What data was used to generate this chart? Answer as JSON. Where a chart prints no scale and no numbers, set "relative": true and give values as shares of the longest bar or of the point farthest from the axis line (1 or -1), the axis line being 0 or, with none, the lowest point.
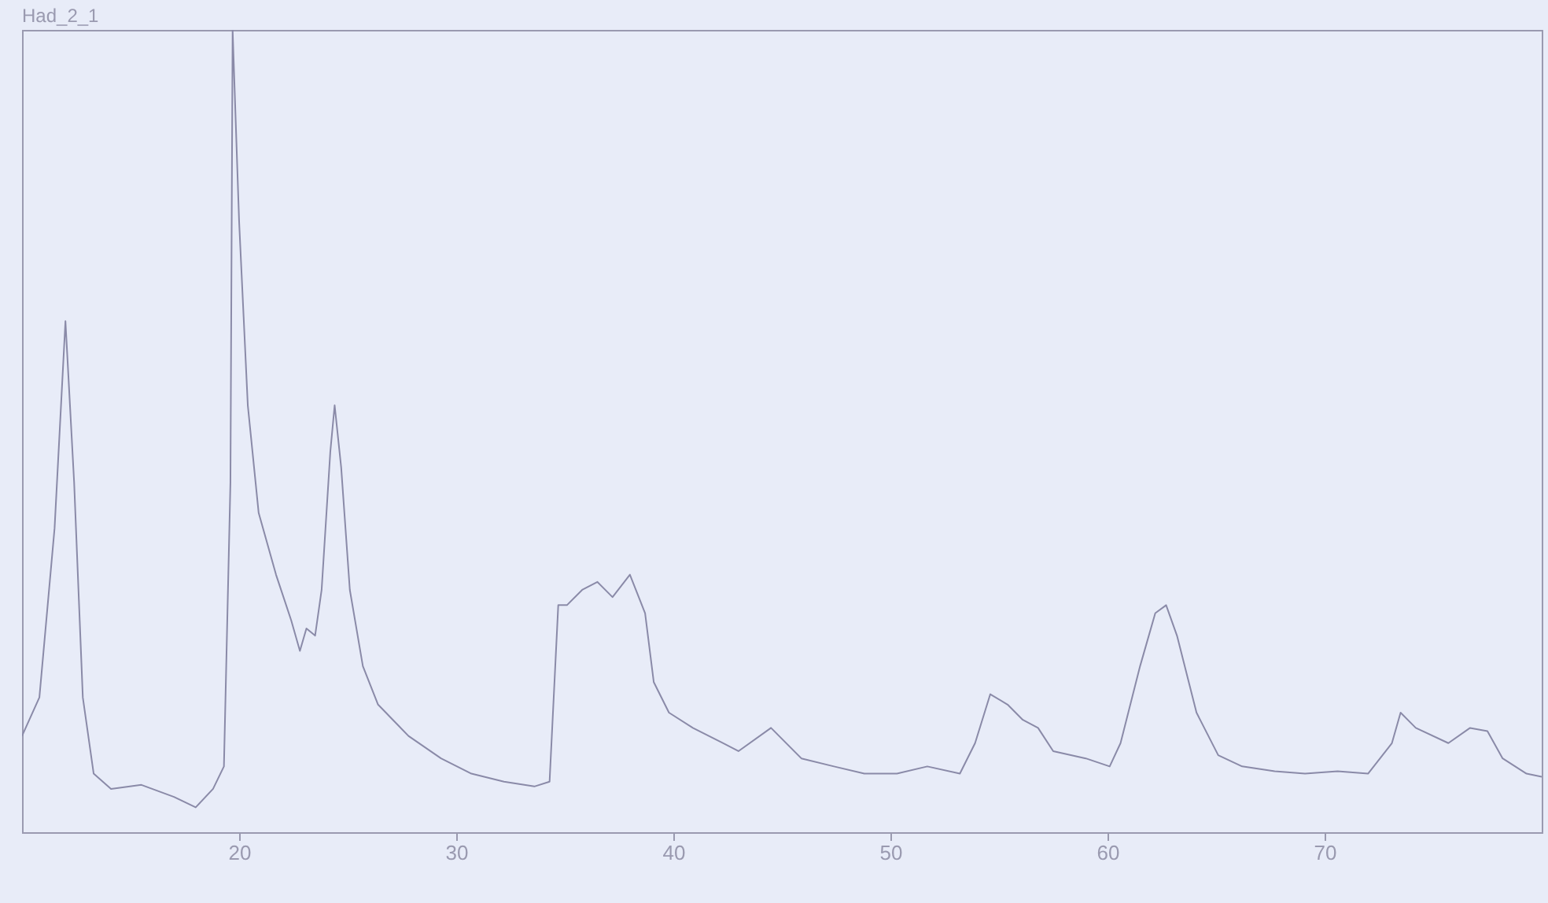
{
  "chart_data": {
    "type": "line",
    "title": "Had_2_1",
    "relative": true,
    "xlim": [
      10,
      80
    ],
    "xticks": [
      20,
      30,
      40,
      50,
      60,
      70
    ],
    "grid": false,
    "x": [
      10.0,
      10.8,
      11.5,
      12.0,
      12.4,
      12.8,
      13.3,
      14.1,
      15.5,
      17.0,
      18.0,
      18.8,
      19.3,
      19.6,
      19.7,
      20.0,
      20.4,
      20.9,
      21.7,
      22.4,
      22.8,
      23.1,
      23.5,
      23.8,
      24.2,
      24.4,
      24.7,
      25.1,
      25.7,
      26.4,
      27.8,
      29.3,
      30.7,
      32.2,
      33.6,
      34.3,
      34.7,
      35.1,
      35.8,
      36.5,
      37.2,
      38.0,
      38.7,
      39.1,
      39.8,
      40.9,
      42.3,
      43.0,
      44.5,
      45.9,
      47.4,
      48.8,
      50.3,
      51.7,
      53.2,
      53.9,
      54.6,
      55.4,
      56.1,
      56.8,
      57.5,
      59.0,
      60.1,
      60.6,
      61.5,
      62.2,
      62.7,
      63.2,
      64.1,
      65.1,
      66.2,
      67.7,
      69.1,
      70.6,
      72.0,
      73.1,
      73.5,
      74.2,
      75.7,
      76.7,
      77.5,
      78.2,
      79.3,
      80.0
    ],
    "series": [
      {
        "color": "#8a8aa8",
        "values": [
          0.12,
          0.168,
          0.379,
          0.637,
          0.436,
          0.168,
          0.073,
          0.054,
          0.059,
          0.044,
          0.031,
          0.054,
          0.082,
          0.436,
          1,
          0.761,
          0.532,
          0.398,
          0.321,
          0.264,
          0.226,
          0.254,
          0.245,
          0.302,
          0.474,
          0.532,
          0.455,
          0.302,
          0.207,
          0.159,
          0.12,
          0.092,
          0.073,
          0.063,
          0.057,
          0.063,
          0.283,
          0.283,
          0.302,
          0.312,
          0.293,
          0.321,
          0.273,
          0.187,
          0.149,
          0.13,
          0.111,
          0.101,
          0.13,
          0.092,
          0.082,
          0.073,
          0.073,
          0.082,
          0.073,
          0.111,
          0.172,
          0.159,
          0.14,
          0.13,
          0.101,
          0.092,
          0.082,
          0.111,
          0.207,
          0.273,
          0.283,
          0.245,
          0.149,
          0.096,
          0.082,
          0.076,
          0.073,
          0.076,
          0.073,
          0.111,
          0.149,
          0.13,
          0.111,
          0.13,
          0.126,
          0.092,
          0.073,
          0.069
        ]
      }
    ]
  }
}
